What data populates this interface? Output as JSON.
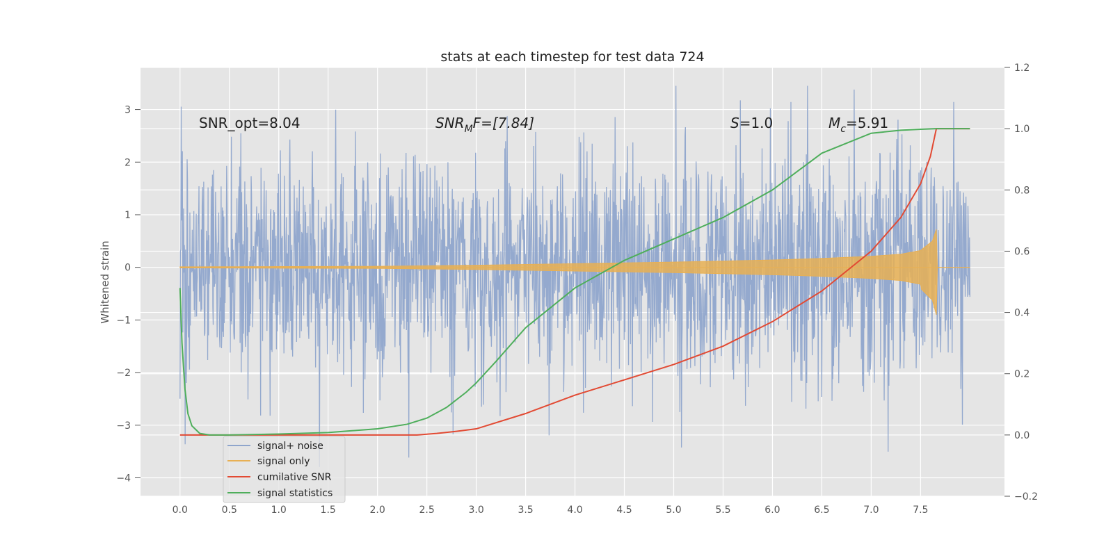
{
  "chart_data": {
    "type": "line",
    "title": "stats at each timestep for test data 724",
    "xlabel": "",
    "ylabel": "Whitened strain",
    "y2label": "",
    "xlim": [
      -0.4,
      8.35
    ],
    "ylim": [
      -4.35,
      3.8
    ],
    "y2lim": [
      -0.2,
      1.2
    ],
    "xticks": [
      "0.0",
      "0.5",
      "1.0",
      "1.5",
      "2.0",
      "2.5",
      "3.0",
      "3.5",
      "4.0",
      "4.5",
      "5.0",
      "5.5",
      "6.0",
      "6.5",
      "7.0",
      "7.5"
    ],
    "yticks": [
      "3",
      "2",
      "1",
      "0",
      "−1",
      "−2",
      "−3",
      "−4"
    ],
    "y2ticks": [
      "1.2",
      "1.0",
      "0.8",
      "0.6",
      "0.4",
      "0.2",
      "0.0",
      "−0.2"
    ],
    "grid": true,
    "legend_position": "bottom-left",
    "annotations": {
      "snr_opt": "SNR_opt=8.04",
      "snr_mf_base": "SNR",
      "snr_mf_sub": "M",
      "snr_mf_rest": "F=[7.84]",
      "s_label": "S",
      "s_value": "=1.0",
      "mc_base": "M",
      "mc_sub": "c",
      "mc_value": "=5.91"
    },
    "series": [
      {
        "name": "signal+ noise",
        "axis": "left",
        "color": "#8fa5cc",
        "description": "white-noise strain, amplitude ~ +/-2.5 with spikes to +3.4 / -4.0, over t = 0 to 8.0"
      },
      {
        "name": "signal only",
        "axis": "left",
        "color": "#e8b054",
        "envelope": {
          "t": [
            0.0,
            2.0,
            3.0,
            4.0,
            5.0,
            6.0,
            6.5,
            7.0,
            7.3,
            7.5,
            7.62,
            7.66,
            7.68,
            8.0
          ],
          "amp": [
            0.01,
            0.02,
            0.04,
            0.07,
            0.1,
            0.14,
            0.17,
            0.21,
            0.25,
            0.32,
            0.5,
            0.72,
            0.0,
            0.0
          ]
        }
      },
      {
        "name": "cumilative SNR",
        "axis": "right",
        "color": "#e24a33",
        "x": [
          0.0,
          0.5,
          1.0,
          1.5,
          2.0,
          2.4,
          2.6,
          2.8,
          3.0,
          3.5,
          4.0,
          4.5,
          5.0,
          5.5,
          6.0,
          6.5,
          7.0,
          7.3,
          7.5,
          7.6,
          7.66,
          7.68,
          8.0
        ],
        "values": [
          0.0,
          0.0,
          0.0,
          0.0,
          0.0,
          0.0,
          0.005,
          0.012,
          0.02,
          0.07,
          0.13,
          0.18,
          0.23,
          0.29,
          0.37,
          0.47,
          0.6,
          0.71,
          0.82,
          0.91,
          1.0,
          1.0,
          1.0
        ]
      },
      {
        "name": "signal statistics",
        "axis": "right",
        "color": "#4eae5b",
        "x": [
          0.0,
          0.02,
          0.05,
          0.08,
          0.12,
          0.2,
          0.3,
          0.5,
          1.0,
          1.5,
          2.0,
          2.3,
          2.5,
          2.7,
          2.9,
          3.0,
          3.2,
          3.5,
          4.0,
          4.5,
          5.0,
          5.5,
          6.0,
          6.5,
          7.0,
          7.3,
          7.5,
          7.66,
          7.7,
          8.0
        ],
        "values": [
          0.48,
          0.3,
          0.15,
          0.07,
          0.03,
          0.005,
          0.0,
          0.0,
          0.003,
          0.008,
          0.02,
          0.035,
          0.055,
          0.09,
          0.14,
          0.17,
          0.24,
          0.35,
          0.48,
          0.57,
          0.64,
          0.71,
          0.8,
          0.92,
          0.985,
          0.995,
          0.998,
          1.0,
          1.0,
          1.0
        ]
      }
    ]
  }
}
